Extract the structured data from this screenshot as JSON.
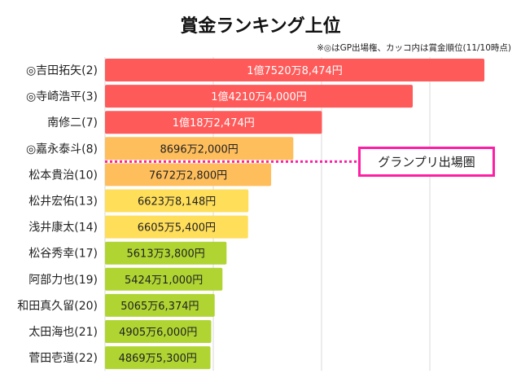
{
  "chart_data": {
    "type": "bar",
    "orientation": "horizontal",
    "title": "賞金ランキング上位",
    "subtitle": "※◎はGP出場権、カッコ内は賞金順位(11/10時点)",
    "unit": "万円",
    "xlim": [
      0,
      19000
    ],
    "grid_step": 5000,
    "grid": true,
    "categories": [
      "◎吉田拓矢(2)",
      "◎寺崎浩平(3)",
      "南修二(7)",
      "◎嘉永泰斗(8)",
      "松本貴治(10)",
      "松井宏佑(13)",
      "浅井康太(14)",
      "松谷秀幸(17)",
      "阿部力也(19)",
      "和田真久留(20)",
      "太田海也(21)",
      "菅田壱道(22)"
    ],
    "values": [
      17520.8474,
      14210.4,
      10018.2474,
      8696.2,
      7672.28,
      6623.8148,
      6605.54,
      5613.38,
      5424.1,
      5065.6374,
      4905.6,
      4869.53
    ],
    "value_labels": [
      "1億7520万8,474円",
      "1億4210万4,000円",
      "1億18万2,474円",
      "8696万2,000円",
      "7672万2,800円",
      "6623万8,148円",
      "6605万5,400円",
      "5613万3,800円",
      "5424万1,000円",
      "5065万6,374円",
      "4905万6,000円",
      "4869万5,300円"
    ],
    "bar_colors": [
      "#ff5a5a",
      "#ff5a5a",
      "#ff5a5a",
      "#ffbe5c",
      "#ffbe5c",
      "#ffde5a",
      "#ffde5a",
      "#b0d533",
      "#b0d533",
      "#b0d533",
      "#b0d533",
      "#b0d533"
    ],
    "annotation": {
      "text": "グランプリ出場圏",
      "color": "#ff1fa6",
      "after_index": 3
    }
  }
}
